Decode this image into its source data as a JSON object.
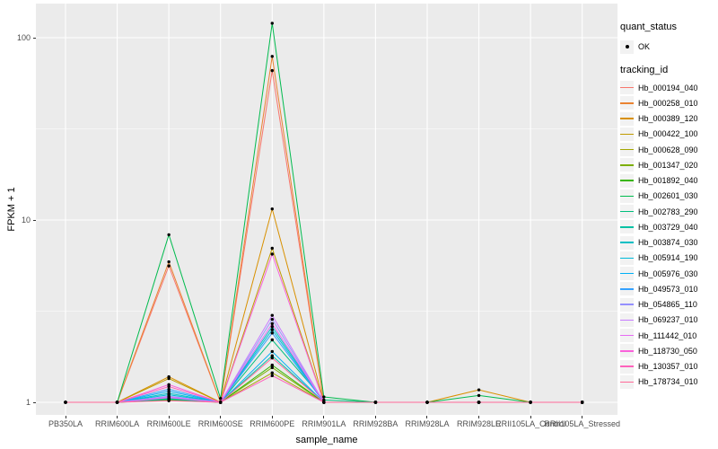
{
  "figure": {
    "background": "#FFFFFF",
    "panel_background": "#EBEBEB",
    "grid_color": "#FFFFFF",
    "tick_color": "#333333",
    "axis_text_color": "#4D4D4D",
    "point_color": "#000000"
  },
  "chart_data": {
    "type": "line",
    "xlabel": "sample_name",
    "ylabel": "FPKM + 1",
    "y_scale": "log10",
    "ylim": [
      0.95,
      148
    ],
    "grid": true,
    "legend_position": "right",
    "y_axis_ticks": [
      {
        "value": 1,
        "label": "1"
      },
      {
        "value": 10,
        "label": "10"
      },
      {
        "value": 100,
        "label": "100"
      }
    ],
    "y_minor_ticks": [
      3.1623,
      31.623
    ],
    "categories": [
      "PB350LA",
      "RRIM600LA",
      "RRIM600LE",
      "RRIM600SE",
      "RRIM600PE",
      "RRIM901LA",
      "RRIM928BA",
      "RRIM928LA",
      "RRIM928LE",
      "RRII105LA_Control",
      "RRII105LA_Stressed"
    ],
    "series": [
      {
        "name": "Hb_000194_040",
        "color": "#F8766D",
        "values": [
          1,
          1,
          5.6,
          1,
          66,
          1,
          1,
          1,
          1,
          1,
          1
        ]
      },
      {
        "name": "Hb_000258_010",
        "color": "#EA8331",
        "values": [
          1,
          1,
          5.9,
          1,
          79,
          1,
          1,
          1,
          1,
          1,
          1
        ]
      },
      {
        "name": "Hb_000389_120",
        "color": "#D89000",
        "values": [
          1,
          1,
          1.38,
          1,
          11.5,
          1,
          1,
          1,
          1.17,
          1,
          1
        ]
      },
      {
        "name": "Hb_000422_100",
        "color": "#C09B00",
        "values": [
          1,
          1,
          1.35,
          1,
          7.0,
          1,
          1,
          1,
          1,
          1,
          1
        ]
      },
      {
        "name": "Hb_000628_090",
        "color": "#A3A500",
        "values": [
          1,
          1,
          1.05,
          1,
          1.45,
          1,
          1,
          1,
          1,
          1,
          1
        ]
      },
      {
        "name": "Hb_001347_020",
        "color": "#7CAE00",
        "values": [
          1,
          1,
          1.04,
          1,
          1.55,
          1,
          1,
          1,
          1,
          1,
          1
        ]
      },
      {
        "name": "Hb_001892_040",
        "color": "#39B600",
        "values": [
          1,
          1,
          1.03,
          1,
          1.6,
          1,
          1,
          1,
          1,
          1,
          1
        ]
      },
      {
        "name": "Hb_002601_030",
        "color": "#00BB4E",
        "values": [
          1,
          1,
          8.3,
          1.05,
          120,
          1.07,
          1,
          1,
          1.09,
          1,
          1
        ]
      },
      {
        "name": "Hb_002783_290",
        "color": "#00BF7D",
        "values": [
          1,
          1,
          1.05,
          1,
          2.2,
          1.03,
          1,
          1,
          1,
          1,
          1
        ]
      },
      {
        "name": "Hb_003729_040",
        "color": "#00C1A3",
        "values": [
          1,
          1,
          1.04,
          1,
          1.8,
          1,
          1,
          1,
          1,
          1,
          1
        ]
      },
      {
        "name": "Hb_003874_030",
        "color": "#00BFC4",
        "values": [
          1,
          1,
          1.12,
          1,
          2.6,
          1,
          1,
          1,
          1,
          1,
          1
        ]
      },
      {
        "name": "Hb_005914_190",
        "color": "#00BBDA",
        "values": [
          1,
          1,
          1.1,
          1,
          2.5,
          1,
          1,
          1,
          1,
          1,
          1
        ]
      },
      {
        "name": "Hb_005976_030",
        "color": "#00B0F6",
        "values": [
          1,
          1,
          1.15,
          1,
          1.9,
          1,
          1,
          1,
          1,
          1,
          1
        ]
      },
      {
        "name": "Hb_049573_010",
        "color": "#35A2FF",
        "values": [
          1,
          1,
          1.18,
          1,
          2.4,
          1,
          1,
          1,
          1,
          1,
          1
        ]
      },
      {
        "name": "Hb_054865_110",
        "color": "#9590FF",
        "values": [
          1,
          1,
          1.08,
          1,
          2.85,
          1,
          1,
          1,
          1,
          1,
          1
        ]
      },
      {
        "name": "Hb_069237_010",
        "color": "#C77CFF",
        "values": [
          1,
          1,
          1.07,
          1,
          3.0,
          1,
          1,
          1,
          1,
          1,
          1
        ]
      },
      {
        "name": "Hb_111442_010",
        "color": "#E76BF3",
        "values": [
          1,
          1,
          1.06,
          1,
          2.7,
          1,
          1,
          1,
          1,
          1,
          1
        ]
      },
      {
        "name": "Hb_118730_050",
        "color": "#FA62DB",
        "values": [
          1,
          1,
          1.25,
          1,
          6.5,
          1,
          1,
          1,
          1,
          1,
          1
        ]
      },
      {
        "name": "Hb_130357_010",
        "color": "#FF62BC",
        "values": [
          1,
          1,
          1.22,
          1,
          1.4,
          1,
          1,
          1,
          1,
          1,
          1
        ]
      },
      {
        "name": "Hb_178734_010",
        "color": "#FF6A98",
        "values": [
          1,
          1,
          1.02,
          1,
          1.75,
          1,
          1,
          1,
          1,
          1,
          1
        ]
      }
    ]
  },
  "legend": {
    "quant_status": {
      "title": "quant_status",
      "items": [
        {
          "label": "OK",
          "marker": "black-point"
        }
      ]
    },
    "tracking_id": {
      "title": "tracking_id"
    }
  }
}
